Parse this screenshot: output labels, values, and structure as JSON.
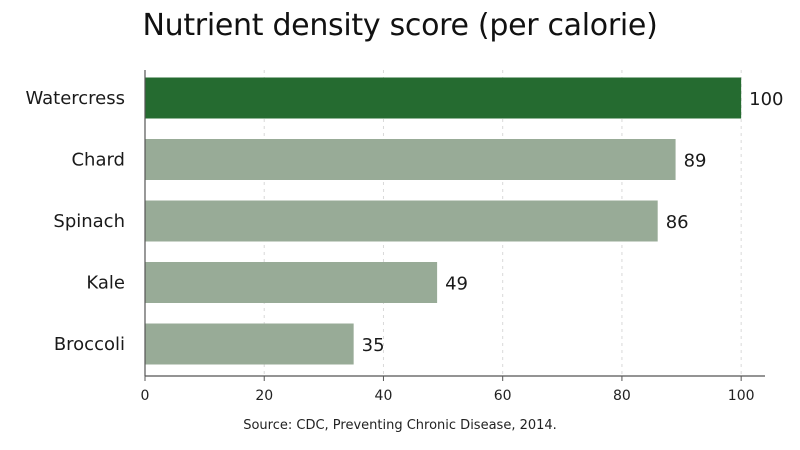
{
  "chart_data": {
    "type": "bar",
    "orientation": "horizontal",
    "title": "Nutrient density score (per calorie)",
    "categories": [
      "Watercress",
      "Chard",
      "Spinach",
      "Kale",
      "Broccoli"
    ],
    "values": [
      100,
      89,
      86,
      49,
      35
    ],
    "xlim": [
      0,
      104
    ],
    "xticks": [
      0,
      20,
      40,
      60,
      80,
      100
    ],
    "grid": "vertical dashed",
    "highlight_index": 0,
    "colors": {
      "highlight": "#256b30",
      "default": "#98ab97",
      "axis": "#555555",
      "grid": "#d9d9d9"
    }
  },
  "source": "Source: CDC, Preventing Chronic Disease, 2014."
}
